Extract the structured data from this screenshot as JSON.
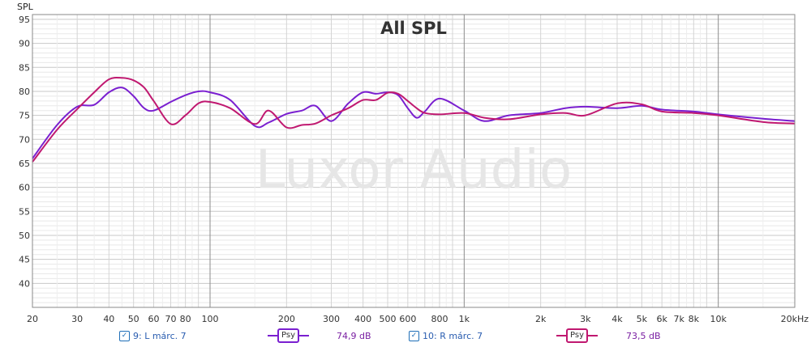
{
  "chart_data": {
    "type": "line",
    "title": "All SPL",
    "ylabel": "SPL",
    "watermark": "Luxor Audio",
    "x_scale": "log",
    "xlim": [
      20,
      20000
    ],
    "ylim": [
      35,
      96
    ],
    "y_ticks": [
      40,
      45,
      50,
      55,
      60,
      65,
      70,
      75,
      80,
      85,
      90,
      95
    ],
    "x_ticks": [
      {
        "value": 20,
        "label": "20"
      },
      {
        "value": 30,
        "label": "30"
      },
      {
        "value": 40,
        "label": "40"
      },
      {
        "value": 50,
        "label": "50"
      },
      {
        "value": 60,
        "label": "60"
      },
      {
        "value": 70,
        "label": "70"
      },
      {
        "value": 80,
        "label": "80"
      },
      {
        "value": 100,
        "label": "100"
      },
      {
        "value": 200,
        "label": "200"
      },
      {
        "value": 300,
        "label": "300"
      },
      {
        "value": 400,
        "label": "400"
      },
      {
        "value": 500,
        "label": "500"
      },
      {
        "value": 600,
        "label": "600"
      },
      {
        "value": 800,
        "label": "800"
      },
      {
        "value": 1000,
        "label": "1k"
      },
      {
        "value": 2000,
        "label": "2k"
      },
      {
        "value": 3000,
        "label": "3k"
      },
      {
        "value": 4000,
        "label": "4k"
      },
      {
        "value": 5000,
        "label": "5k"
      },
      {
        "value": 6000,
        "label": "6k"
      },
      {
        "value": 7000,
        "label": "7k"
      },
      {
        "value": 8000,
        "label": "8k"
      },
      {
        "value": 10000,
        "label": "10k"
      },
      {
        "value": 20000,
        "label": "20kHz"
      }
    ],
    "grid": true,
    "series": [
      {
        "name": "9: L márc. 7",
        "color": "#7a1fd0",
        "x": [
          20,
          25,
          30,
          35,
          40,
          45,
          50,
          55,
          60,
          70,
          80,
          90,
          100,
          120,
          150,
          170,
          200,
          230,
          260,
          300,
          350,
          400,
          450,
          500,
          550,
          600,
          650,
          700,
          800,
          1000,
          1200,
          1500,
          2000,
          2500,
          3000,
          4000,
          5000,
          6000,
          8000,
          10000,
          15000,
          20000
        ],
        "values": [
          66,
          73,
          76.8,
          77.2,
          79.8,
          80.8,
          79,
          76.5,
          76,
          77.8,
          79.2,
          80,
          79.8,
          78.2,
          72.8,
          73.5,
          75.3,
          76,
          77,
          73.8,
          77.5,
          79.8,
          79.5,
          79.8,
          79.2,
          76.5,
          74.5,
          75.8,
          78.5,
          76,
          73.8,
          75,
          75.5,
          76.5,
          76.8,
          76.5,
          77,
          76.2,
          75.8,
          75.2,
          74.3,
          73.8
        ]
      },
      {
        "name": "10: R márc. 7",
        "color": "#c01870",
        "x": [
          20,
          25,
          30,
          35,
          40,
          45,
          50,
          55,
          60,
          70,
          80,
          90,
          100,
          120,
          150,
          170,
          200,
          230,
          260,
          300,
          350,
          400,
          450,
          500,
          550,
          600,
          650,
          700,
          800,
          1000,
          1200,
          1500,
          2000,
          2500,
          3000,
          4000,
          5000,
          6000,
          8000,
          10000,
          15000,
          20000
        ],
        "values": [
          65.3,
          72,
          76.3,
          79.8,
          82.5,
          82.8,
          82.3,
          80.8,
          78,
          73.2,
          75,
          77.5,
          77.8,
          76.5,
          73.2,
          76,
          72.5,
          73,
          73.3,
          75,
          76.5,
          78.2,
          78.2,
          79.7,
          79.5,
          78,
          76.5,
          75.5,
          75.2,
          75.5,
          74.5,
          74.2,
          75.2,
          75.5,
          75,
          77.5,
          77.3,
          75.8,
          75.5,
          75,
          73.6,
          73.3
        ]
      }
    ]
  },
  "legend": [
    {
      "label": "9: L márc. 7",
      "checked": true,
      "psy": "Psy",
      "value": "74,9 dB",
      "color": "#7a1fd0"
    },
    {
      "label": "10: R márc. 7",
      "checked": true,
      "psy": "Psy",
      "value": "73,5 dB",
      "color": "#c01870"
    }
  ]
}
